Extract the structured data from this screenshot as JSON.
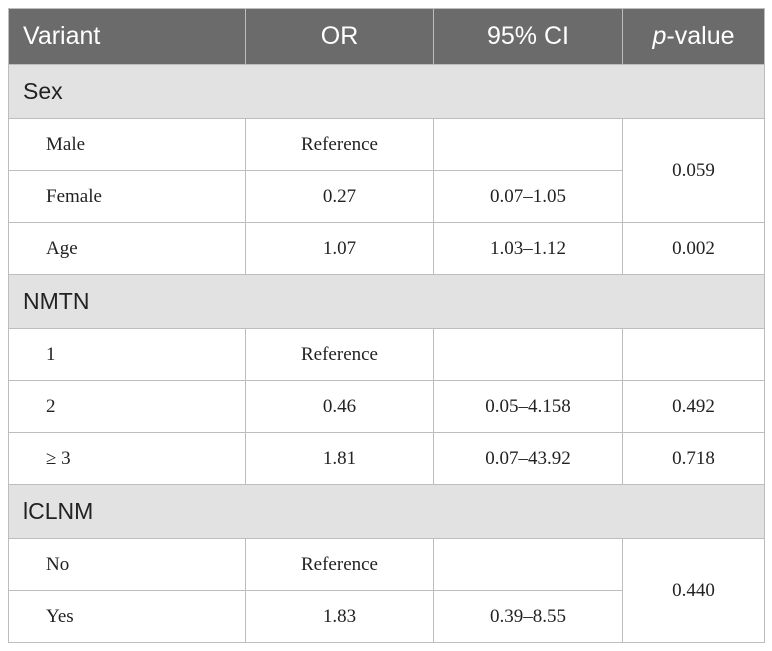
{
  "table": {
    "header": [
      "Variant",
      "OR",
      "95% CI",
      [
        "p",
        "-value"
      ]
    ],
    "sections": [
      {
        "title": "Sex",
        "rows": [
          {
            "label": "Male",
            "or": "Reference",
            "p": "0.059"
          },
          {
            "label": "Female",
            "or": "0.27",
            "ci": "0.07–1.05"
          },
          {
            "label": "Age",
            "or": "1.07",
            "ci": "1.03–1.12",
            "p": "0.002"
          }
        ]
      },
      {
        "title": "NMTN",
        "rows": [
          {
            "label": "1",
            "or": "Reference"
          },
          {
            "label": "2",
            "or": "0.46",
            "ci": "0.05–4.158",
            "p": "0.492"
          },
          {
            "label": "≥ 3",
            "or": "1.81",
            "ci": "0.07–43.92",
            "p": "0.718"
          }
        ]
      },
      {
        "title": "lCLNM",
        "rows": [
          {
            "label": "No",
            "or": "Reference",
            "p": "0.440"
          },
          {
            "label": "Yes",
            "or": "1.83",
            "ci": "0.39–8.55"
          }
        ]
      }
    ]
  }
}
